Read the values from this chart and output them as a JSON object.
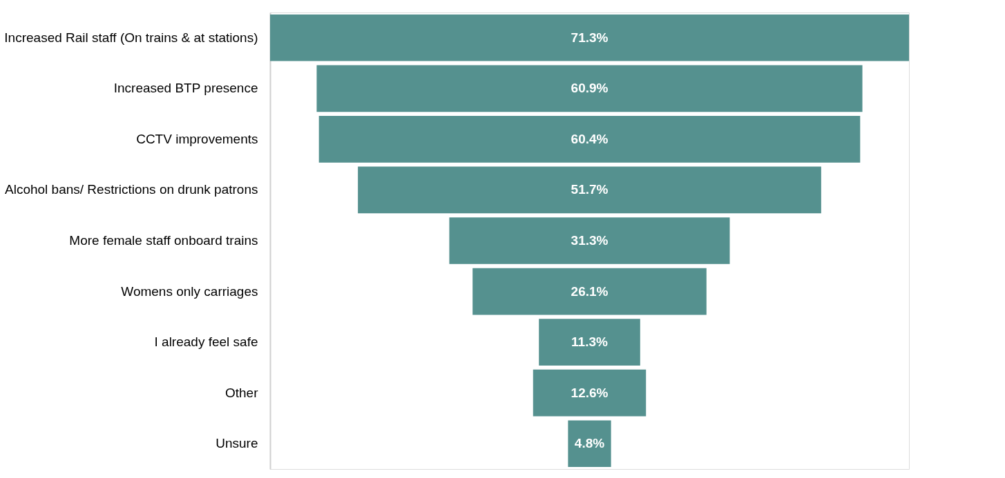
{
  "chart_data": {
    "type": "other",
    "categories": [
      "Increased Rail staff (On trains & at stations)",
      "Increased BTP presence",
      "CCTV improvements",
      "Alcohol bans/ Restrictions on drunk patrons",
      "More female staff onboard trains",
      "Womens only carriages",
      "I already feel safe",
      "Other",
      "Unsure"
    ],
    "values": [
      71.3,
      60.9,
      60.4,
      51.7,
      31.3,
      26.1,
      11.3,
      12.6,
      4.8
    ],
    "value_labels": [
      "71.3%",
      "60.9%",
      "60.4%",
      "51.7%",
      "31.3%",
      "26.1%",
      "11.3%",
      "12.6%",
      "4.8%"
    ],
    "color": "#55918f"
  }
}
